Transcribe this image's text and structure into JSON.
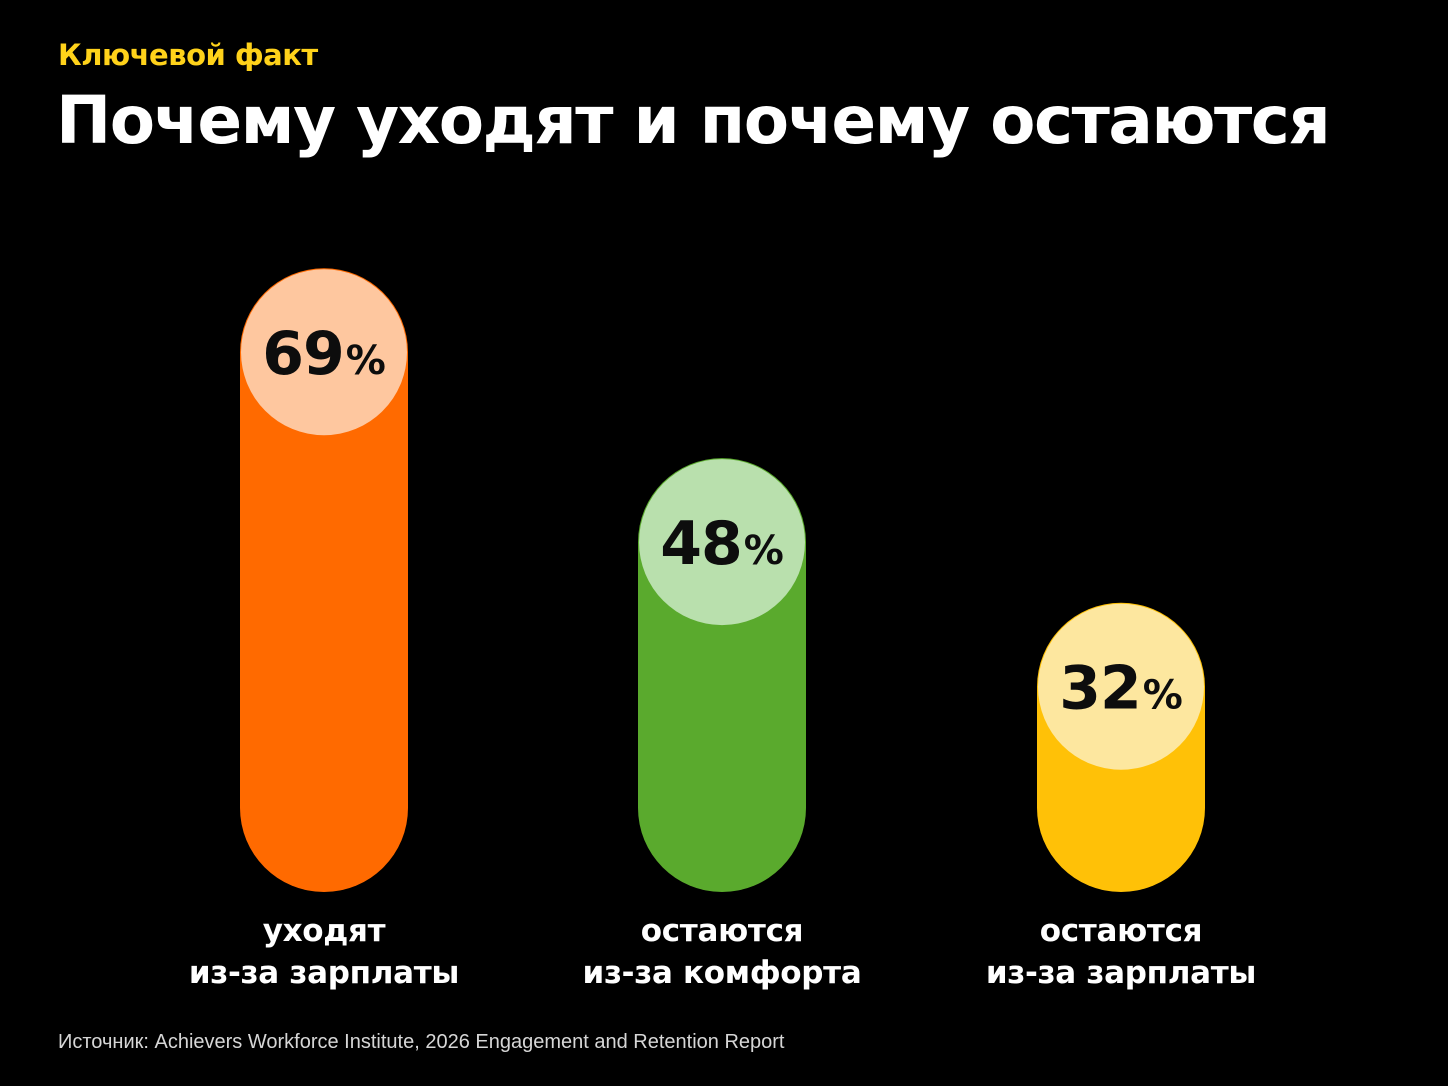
{
  "header": {
    "kicker": "Ключевой факт",
    "title": "Почему уходят и почему остаются"
  },
  "footer": {
    "source": "Источник: Achievers Workforce Institute, 2026 Engagement and Retention Report"
  },
  "chart_data": {
    "type": "bar",
    "title": "Почему уходят и почему остаются",
    "unit": "%",
    "categories": [
      [
        "уходят",
        "из-за зарплаты"
      ],
      [
        "остаются",
        "из-за комфорта"
      ],
      [
        "остаются",
        "из-за зарплаты"
      ]
    ],
    "values": [
      69,
      48,
      32
    ],
    "value_labels": [
      "69",
      "48",
      "32"
    ],
    "colors": {
      "bars": [
        "#ff6a00",
        "#5aaa2d",
        "#ffc107"
      ],
      "caps": [
        "#fec79f",
        "#b9e0ad",
        "#fde79f"
      ]
    },
    "ylim": [
      0,
      100
    ],
    "grid": false,
    "legend": "none"
  }
}
